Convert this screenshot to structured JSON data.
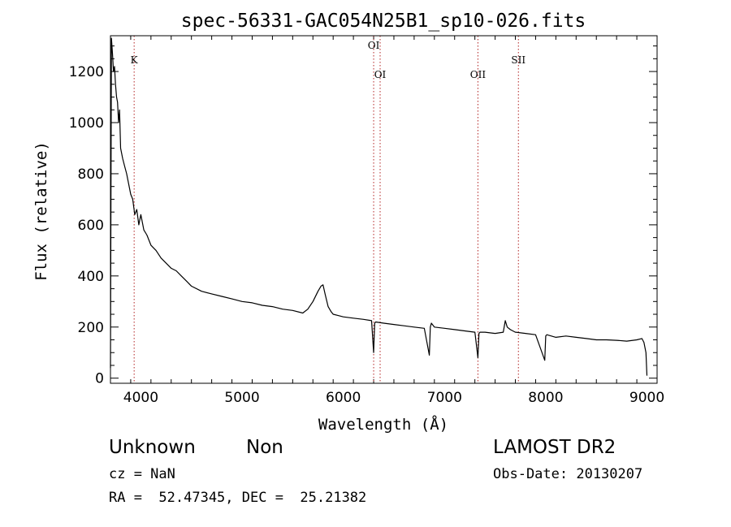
{
  "chart_data": {
    "type": "line",
    "title": "spec-56331-GAC054N25B1_sp10-026.fits",
    "xlabel": "Wavelength (Å)",
    "ylabel": "Flux (relative)",
    "xlim": [
      3700,
      9100
    ],
    "ylim": [
      -20,
      1340
    ],
    "xticks": [
      4000,
      5000,
      6000,
      7000,
      8000,
      9000
    ],
    "yticks": [
      0,
      200,
      400,
      600,
      800,
      1000,
      1200
    ],
    "grid": false,
    "line_color": "#000000",
    "marker_color": "#b22222",
    "spectral_lines": [
      {
        "label": "K",
        "wavelength": 3934,
        "label_level": 1
      },
      {
        "label": "OI",
        "wavelength": 6300,
        "label_level": 0
      },
      {
        "label": "OI",
        "wavelength": 6364,
        "label_level": 2
      },
      {
        "label": "OII",
        "wavelength": 7330,
        "label_level": 2
      },
      {
        "label": "SII",
        "wavelength": 7730,
        "label_level": 1
      }
    ],
    "series": [
      {
        "x": [
          3700,
          3710,
          3720,
          3730,
          3740,
          3750,
          3760,
          3770,
          3780,
          3790,
          3800,
          3820,
          3840,
          3860,
          3880,
          3900,
          3920,
          3940,
          3960,
          3980,
          4000,
          4030,
          4060,
          4100,
          4150,
          4200,
          4250,
          4300,
          4350,
          4400,
          4450,
          4500,
          4600,
          4700,
          4800,
          4900,
          5000,
          5100,
          5200,
          5300,
          5400,
          5500,
          5600,
          5650,
          5700,
          5750,
          5780,
          5800,
          5820,
          5850,
          5880,
          5900,
          5950,
          6000,
          6100,
          6200,
          6280,
          6300,
          6310,
          6320,
          6400,
          6500,
          6600,
          6700,
          6800,
          6850,
          6860,
          6870,
          6900,
          7000,
          7100,
          7200,
          7300,
          7330,
          7340,
          7350,
          7400,
          7500,
          7580,
          7600,
          7620,
          7650,
          7700,
          7800,
          7900,
          7990,
          8000,
          8010,
          8100,
          8200,
          8300,
          8400,
          8500,
          8600,
          8700,
          8800,
          8900,
          8950,
          8970,
          8990,
          9000
        ],
        "y": [
          40,
          1330,
          1270,
          1200,
          1220,
          1150,
          1100,
          1080,
          1000,
          1050,
          900,
          860,
          830,
          800,
          760,
          720,
          700,
          640,
          660,
          600,
          640,
          580,
          560,
          520,
          500,
          470,
          450,
          430,
          420,
          400,
          380,
          360,
          340,
          330,
          320,
          310,
          300,
          295,
          285,
          280,
          270,
          265,
          255,
          270,
          300,
          340,
          360,
          365,
          330,
          280,
          260,
          250,
          245,
          240,
          235,
          230,
          225,
          100,
          215,
          220,
          215,
          210,
          205,
          200,
          195,
          90,
          200,
          215,
          200,
          195,
          190,
          185,
          180,
          80,
          175,
          180,
          180,
          175,
          180,
          225,
          200,
          190,
          180,
          175,
          170,
          70,
          165,
          170,
          160,
          165,
          160,
          155,
          150,
          150,
          148,
          145,
          150,
          155,
          140,
          100,
          10
        ]
      }
    ]
  },
  "footer": {
    "object_class": "Unknown",
    "subclass": "Non",
    "cz": "cz = NaN",
    "radec": "RA =  52.47345, DEC =  25.21382",
    "survey": "LAMOST DR2",
    "obs_date": "Obs-Date: 20130207"
  }
}
